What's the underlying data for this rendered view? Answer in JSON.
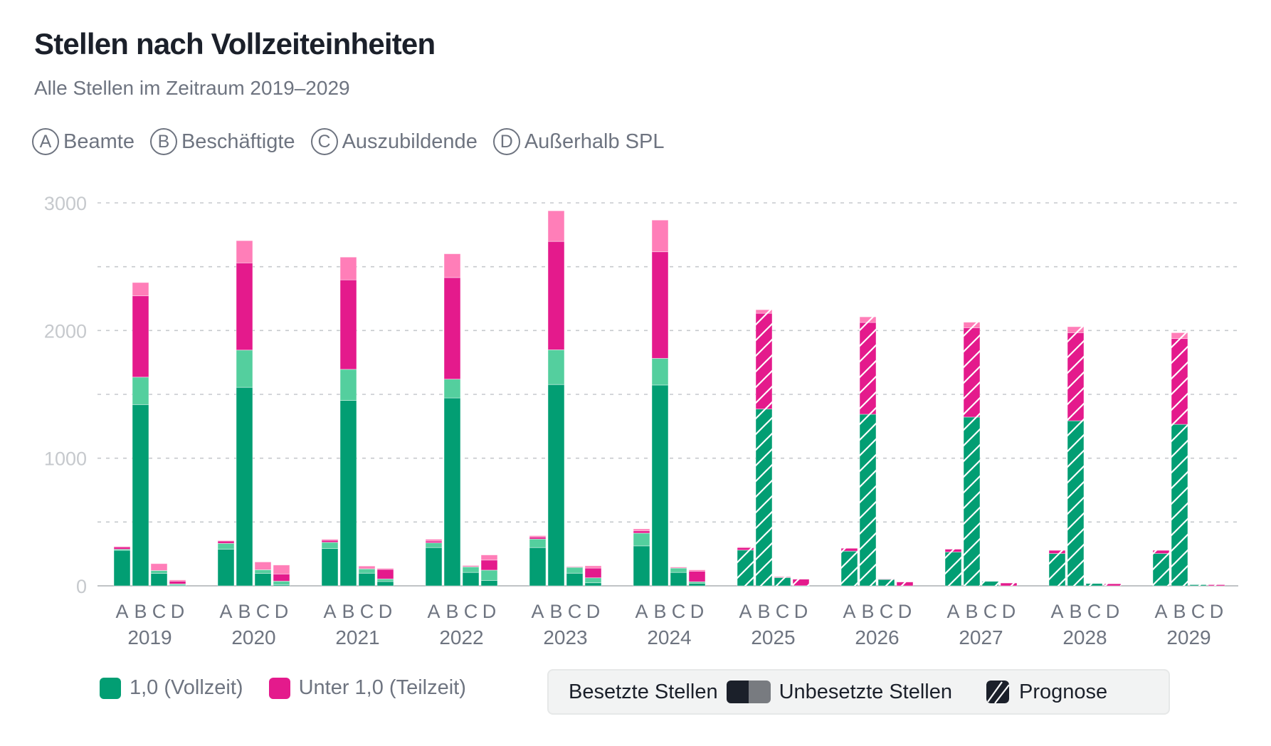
{
  "header": {
    "title": "Stellen nach Vollzeiteinheiten",
    "subtitle": "Alle Stellen im Zeitraum 2019–2029"
  },
  "category_legend": [
    {
      "letter": "A",
      "label": "Beamte"
    },
    {
      "letter": "B",
      "label": "Beschäftigte"
    },
    {
      "letter": "C",
      "label": "Auszubildende"
    },
    {
      "letter": "D",
      "label": "Außerhalb SPL"
    }
  ],
  "bottom_legend": {
    "fulltime_label": "1,0 (Vollzeit)",
    "parttime_label": "Unter 1,0 (Teilzeit)",
    "occupied_label": "Besetzte Stellen",
    "vacant_label": "Unbesetzte Stellen",
    "forecast_label": "Prognose"
  },
  "colors": {
    "fulltime_occupied": "#029e73",
    "fulltime_vacant": "#54cf9e",
    "parttime_occupied": "#e41a8c",
    "parttime_vacant": "#ff7eb8",
    "legend_dark": "#1b202a",
    "legend_gray": "#787b80",
    "grid": "#c6c9cd",
    "axis": "#c0c3c6"
  },
  "chart_data": {
    "type": "bar",
    "stacked": true,
    "grouped": true,
    "title": "Stellen nach Vollzeiteinheiten",
    "subtitle": "Alle Stellen im Zeitraum 2019–2029",
    "xlabel": "",
    "ylabel": "",
    "ylim": [
      0,
      3000
    ],
    "yticks": [
      0,
      1000,
      2000,
      3000
    ],
    "minor_gridlines": [
      500,
      1500,
      2500
    ],
    "grid": true,
    "categories": [
      "2019",
      "2020",
      "2021",
      "2022",
      "2023",
      "2024",
      "2025",
      "2026",
      "2027",
      "2028",
      "2029"
    ],
    "subcategories": [
      "A",
      "B",
      "C",
      "D"
    ],
    "forecast_from": "2025",
    "segments": [
      "1,0 (Vollzeit) besetzt",
      "1,0 (Vollzeit) unbesetzt",
      "Unter 1,0 (Teilzeit) besetzt",
      "Unter 1,0 (Teilzeit) unbesetzt"
    ],
    "values": {
      "2019": {
        "A": [
          278,
          9,
          18,
          4
        ],
        "B": [
          1420,
          215,
          637,
          104
        ],
        "C": [
          98,
          22,
          0,
          54
        ],
        "D": [
          6,
          9,
          22,
          9
        ]
      },
      "2020": {
        "A": [
          287,
          46,
          19,
          3
        ],
        "B": [
          1555,
          292,
          683,
          174
        ],
        "C": [
          98,
          28,
          0,
          61
        ],
        "D": [
          9,
          28,
          56,
          70
        ]
      },
      "2021": {
        "A": [
          292,
          49,
          16,
          8
        ],
        "B": [
          1452,
          244,
          701,
          178
        ],
        "C": [
          99,
          34,
          0,
          22
        ],
        "D": [
          34,
          20,
          75,
          8
        ]
      },
      "2022": {
        "A": [
          300,
          37,
          14,
          14
        ],
        "B": [
          1472,
          147,
          796,
          186
        ],
        "C": [
          105,
          44,
          0,
          10
        ],
        "D": [
          42,
          81,
          79,
          40
        ]
      },
      "2023": {
        "A": [
          300,
          67,
          16,
          10
        ],
        "B": [
          1577,
          272,
          849,
          240
        ],
        "C": [
          99,
          46,
          0,
          6
        ],
        "D": [
          24,
          39,
          76,
          18
        ]
      },
      "2024": {
        "A": [
          313,
          100,
          18,
          15
        ],
        "B": [
          1573,
          209,
          835,
          248
        ],
        "C": [
          105,
          34,
          0,
          8
        ],
        "D": [
          20,
          12,
          83,
          10
        ]
      },
      "2025": {
        "A": [
          280,
          0,
          20,
          4
        ],
        "B": [
          1385,
          0,
          750,
          28
        ],
        "C": [
          65,
          0,
          0,
          7
        ],
        "D": [
          1,
          0,
          51,
          0
        ]
      },
      "2026": {
        "A": [
          272,
          0,
          22,
          0
        ],
        "B": [
          1344,
          0,
          719,
          44
        ],
        "C": [
          52,
          0,
          0,
          2
        ],
        "D": [
          0,
          0,
          30,
          0
        ]
      },
      "2027": {
        "A": [
          265,
          0,
          22,
          0
        ],
        "B": [
          1322,
          0,
          700,
          43
        ],
        "C": [
          35,
          0,
          0,
          0
        ],
        "D": [
          0,
          0,
          22,
          0
        ]
      },
      "2028": {
        "A": [
          253,
          0,
          25,
          0
        ],
        "B": [
          1293,
          0,
          690,
          47
        ],
        "C": [
          18,
          0,
          0,
          0
        ],
        "D": [
          0,
          0,
          16,
          0
        ]
      },
      "2029": {
        "A": [
          253,
          0,
          25,
          0
        ],
        "B": [
          1265,
          0,
          672,
          46
        ],
        "C": [
          9,
          0,
          0,
          0
        ],
        "D": [
          0,
          0,
          9,
          0
        ]
      }
    },
    "legend_placement": "bottom"
  }
}
